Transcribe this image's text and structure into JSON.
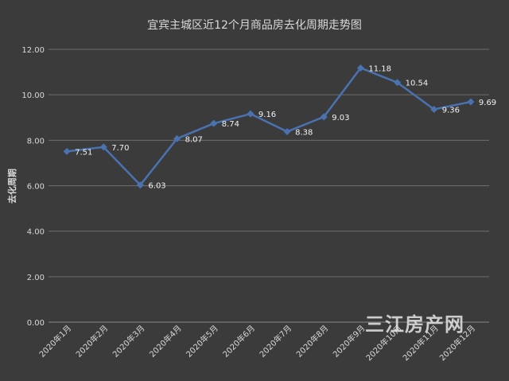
{
  "chart_data": {
    "type": "line",
    "title": "宜宾主城区近12个月商品房去化周期走势图",
    "xlabel": "",
    "ylabel": "去化周期",
    "categories": [
      "2020年1月",
      "2020年2月",
      "2020年3月",
      "2020年4月",
      "2020年5月",
      "2020年6月",
      "2020年7月",
      "2020年8月",
      "2020年9月",
      "2020年10月",
      "2020年11月",
      "2020年12月"
    ],
    "series": [
      {
        "values": [
          7.51,
          7.7,
          6.03,
          8.07,
          8.74,
          9.16,
          8.38,
          9.03,
          11.18,
          10.54,
          9.36,
          9.69
        ]
      }
    ],
    "data_labels": [
      "7.51",
      "7.70",
      "6.03",
      "8.07",
      "8.74",
      "9.16",
      "8.38",
      "9.03",
      "11.18",
      "10.54",
      "9.36",
      "9.69"
    ],
    "ylim": [
      0,
      12
    ],
    "yticks": [
      "0.00",
      "2.00",
      "4.00",
      "6.00",
      "8.00",
      "10.00",
      "12.00"
    ],
    "grid": true,
    "colors": {
      "background": "#3b3b3b",
      "line": "#4a72b0",
      "grid": "#6e6e6e",
      "text": "#d9d9d9"
    }
  },
  "watermark": "三江房产网"
}
